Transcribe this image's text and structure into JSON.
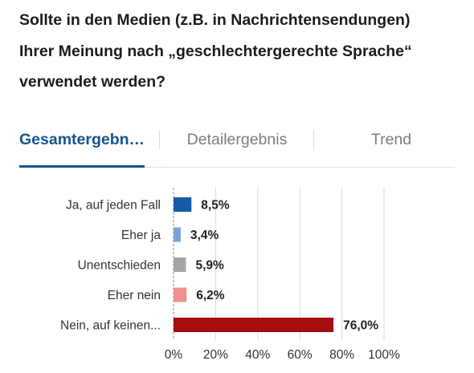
{
  "question": {
    "lines": [
      "Sollte in den Medien (z.B. in Nachrichtensendungen)",
      "Ihrer Meinung nach „geschlechtergerechte Sprache“",
      "verwendet werden?"
    ]
  },
  "tabs": [
    {
      "label": "Gesamtergebn…",
      "active": true
    },
    {
      "label": "Detailergebnis",
      "active": false
    },
    {
      "label": "Trend",
      "active": false
    }
  ],
  "chart_data": {
    "type": "bar",
    "orientation": "horizontal",
    "categories": [
      "Ja, auf jeden Fall",
      "Eher ja",
      "Unentschieden",
      "Eher nein",
      "Nein, auf keinen..."
    ],
    "values": [
      8.5,
      3.4,
      5.9,
      6.2,
      76.0
    ],
    "value_labels": [
      "8,5%",
      "3,4%",
      "5,9%",
      "6,2%",
      "76,0%"
    ],
    "colors": [
      "#165ba6",
      "#7ba3d6",
      "#a6a6a6",
      "#ef8f91",
      "#a50d10"
    ],
    "xlim": [
      0,
      100
    ],
    "xticks": [
      0,
      20,
      40,
      60,
      80,
      100
    ],
    "xtick_labels": [
      "0%",
      "20%",
      "40%",
      "60%",
      "80%",
      "100%"
    ],
    "grid": true
  }
}
